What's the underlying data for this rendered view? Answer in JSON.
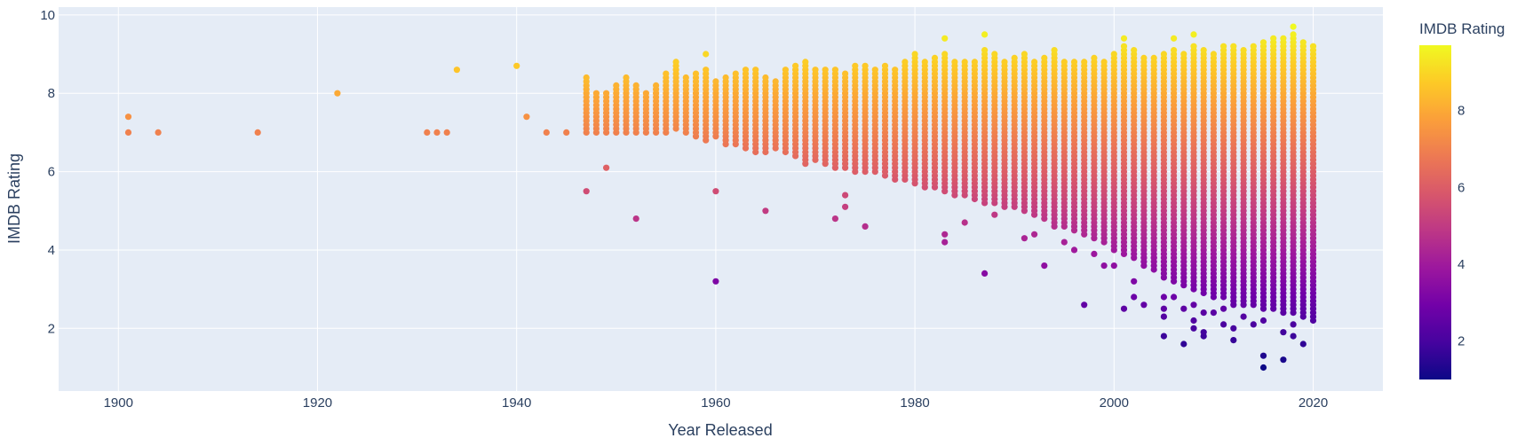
{
  "chart_data": {
    "type": "scatter",
    "xlabel": "Year Released",
    "ylabel": "IMDB Rating",
    "xlim": [
      1894,
      2027
    ],
    "ylim": [
      0.4,
      10.2
    ],
    "x_ticks": [
      1900,
      1920,
      1940,
      1960,
      1980,
      2000,
      2020
    ],
    "y_ticks": [
      2,
      4,
      6,
      8,
      10
    ],
    "grid": true,
    "plot_background": "#e5ecf6",
    "grid_color": "#ffffff",
    "colorbar": {
      "title": "IMDB Rating",
      "range": [
        1,
        9.7
      ],
      "ticks": [
        2,
        4,
        6,
        8
      ],
      "colorscale": "plasma"
    },
    "rating_step": 0.1,
    "year_rating_ranges": [
      [
        1947,
        7.0,
        8.3
      ],
      [
        1948,
        7.0,
        8.0
      ],
      [
        1949,
        7.0,
        8.0
      ],
      [
        1950,
        7.0,
        8.2
      ],
      [
        1951,
        7.0,
        8.4
      ],
      [
        1952,
        7.0,
        8.2
      ],
      [
        1953,
        7.0,
        8.0
      ],
      [
        1954,
        7.0,
        8.2
      ],
      [
        1955,
        7.0,
        8.5
      ],
      [
        1956,
        7.1,
        8.7
      ],
      [
        1957,
        7.0,
        8.4
      ],
      [
        1958,
        6.9,
        8.5
      ],
      [
        1959,
        6.8,
        8.6
      ],
      [
        1960,
        6.9,
        8.3
      ],
      [
        1961,
        6.7,
        8.4
      ],
      [
        1962,
        6.7,
        8.5
      ],
      [
        1963,
        6.6,
        8.6
      ],
      [
        1964,
        6.5,
        8.6
      ],
      [
        1965,
        6.5,
        8.4
      ],
      [
        1966,
        6.6,
        8.3
      ],
      [
        1967,
        6.5,
        8.6
      ],
      [
        1968,
        6.4,
        8.7
      ],
      [
        1969,
        6.2,
        8.8
      ],
      [
        1970,
        6.3,
        8.6
      ],
      [
        1971,
        6.2,
        8.6
      ],
      [
        1972,
        6.1,
        8.6
      ],
      [
        1973,
        6.1,
        8.5
      ],
      [
        1974,
        6.0,
        8.7
      ],
      [
        1975,
        6.0,
        8.7
      ],
      [
        1976,
        6.0,
        8.6
      ],
      [
        1977,
        5.9,
        8.7
      ],
      [
        1978,
        5.8,
        8.6
      ],
      [
        1979,
        5.8,
        8.8
      ],
      [
        1980,
        5.7,
        9.0
      ],
      [
        1981,
        5.6,
        8.8
      ],
      [
        1982,
        5.6,
        8.9
      ],
      [
        1983,
        5.5,
        9.0
      ],
      [
        1984,
        5.4,
        8.8
      ],
      [
        1985,
        5.4,
        8.8
      ],
      [
        1986,
        5.3,
        8.8
      ],
      [
        1987,
        5.2,
        9.1
      ],
      [
        1988,
        5.2,
        9.0
      ],
      [
        1989,
        5.1,
        8.8
      ],
      [
        1990,
        5.1,
        8.9
      ],
      [
        1991,
        5.0,
        9.0
      ],
      [
        1992,
        4.9,
        8.8
      ],
      [
        1993,
        4.8,
        8.9
      ],
      [
        1994,
        4.6,
        9.1
      ],
      [
        1995,
        4.6,
        8.8
      ],
      [
        1996,
        4.5,
        8.8
      ],
      [
        1997,
        4.4,
        8.8
      ],
      [
        1998,
        4.3,
        8.9
      ],
      [
        1999,
        4.2,
        8.8
      ],
      [
        2000,
        4.0,
        9.0
      ],
      [
        2001,
        3.9,
        9.2
      ],
      [
        2002,
        3.8,
        9.1
      ],
      [
        2003,
        3.6,
        8.9
      ],
      [
        2004,
        3.5,
        8.9
      ],
      [
        2005,
        3.3,
        9.0
      ],
      [
        2006,
        3.2,
        9.1
      ],
      [
        2007,
        3.1,
        9.0
      ],
      [
        2008,
        3.0,
        9.2
      ],
      [
        2009,
        2.9,
        9.1
      ],
      [
        2010,
        2.8,
        9.0
      ],
      [
        2011,
        2.8,
        9.2
      ],
      [
        2012,
        2.7,
        9.2
      ],
      [
        2013,
        2.6,
        9.1
      ],
      [
        2014,
        2.6,
        9.2
      ],
      [
        2015,
        2.5,
        9.3
      ],
      [
        2016,
        2.5,
        9.4
      ],
      [
        2017,
        2.4,
        9.4
      ],
      [
        2018,
        2.4,
        9.5
      ],
      [
        2019,
        2.3,
        9.3
      ],
      [
        2020,
        2.2,
        9.2
      ]
    ],
    "points": [
      [
        1901,
        7.4
      ],
      [
        1901,
        7.0
      ],
      [
        1904,
        7.0
      ],
      [
        1914,
        7.0
      ],
      [
        1922,
        8.0
      ],
      [
        1931,
        7.0
      ],
      [
        1932,
        7.0
      ],
      [
        1933,
        7.0
      ],
      [
        1934,
        8.6
      ],
      [
        1940,
        8.7
      ],
      [
        1941,
        7.4
      ],
      [
        1943,
        7.0
      ],
      [
        1945,
        7.0
      ],
      [
        1947,
        8.4
      ],
      [
        1947,
        5.5
      ],
      [
        1949,
        6.1
      ],
      [
        1952,
        4.8
      ],
      [
        1956,
        8.8
      ],
      [
        1959,
        9.0
      ],
      [
        1960,
        5.5
      ],
      [
        1960,
        3.2
      ],
      [
        1965,
        5.0
      ],
      [
        1972,
        4.8
      ],
      [
        1973,
        5.4
      ],
      [
        1973,
        5.1
      ],
      [
        1975,
        4.6
      ],
      [
        1983,
        9.4
      ],
      [
        1983,
        4.4
      ],
      [
        1983,
        4.2
      ],
      [
        1985,
        4.7
      ],
      [
        1987,
        9.5
      ],
      [
        1987,
        3.4
      ],
      [
        1988,
        4.9
      ],
      [
        1991,
        4.3
      ],
      [
        1992,
        4.4
      ],
      [
        1993,
        3.6
      ],
      [
        1995,
        4.2
      ],
      [
        1996,
        4.0
      ],
      [
        1997,
        2.6
      ],
      [
        1998,
        3.9
      ],
      [
        1999,
        3.6
      ],
      [
        2000,
        3.6
      ],
      [
        2001,
        9.4
      ],
      [
        2001,
        2.5
      ],
      [
        2002,
        3.2
      ],
      [
        2002,
        2.8
      ],
      [
        2003,
        3.8
      ],
      [
        2003,
        2.6
      ],
      [
        2004,
        3.8
      ],
      [
        2005,
        2.8
      ],
      [
        2005,
        2.5
      ],
      [
        2005,
        2.3
      ],
      [
        2005,
        1.8
      ],
      [
        2006,
        2.8
      ],
      [
        2006,
        9.4
      ],
      [
        2007,
        2.5
      ],
      [
        2007,
        1.6
      ],
      [
        2008,
        2.6
      ],
      [
        2008,
        2.2
      ],
      [
        2008,
        2.0
      ],
      [
        2008,
        9.5
      ],
      [
        2009,
        2.4
      ],
      [
        2009,
        1.9
      ],
      [
        2009,
        1.8
      ],
      [
        2010,
        2.4
      ],
      [
        2011,
        2.5
      ],
      [
        2011,
        2.1
      ],
      [
        2012,
        2.6
      ],
      [
        2012,
        2.0
      ],
      [
        2012,
        1.7
      ],
      [
        2013,
        2.3
      ],
      [
        2014,
        2.1
      ],
      [
        2015,
        2.2
      ],
      [
        2015,
        1.3
      ],
      [
        2015,
        1.0
      ],
      [
        2017,
        1.9
      ],
      [
        2017,
        1.2
      ],
      [
        2018,
        2.1
      ],
      [
        2018,
        1.8
      ],
      [
        2018,
        9.7
      ],
      [
        2019,
        1.6
      ]
    ]
  }
}
